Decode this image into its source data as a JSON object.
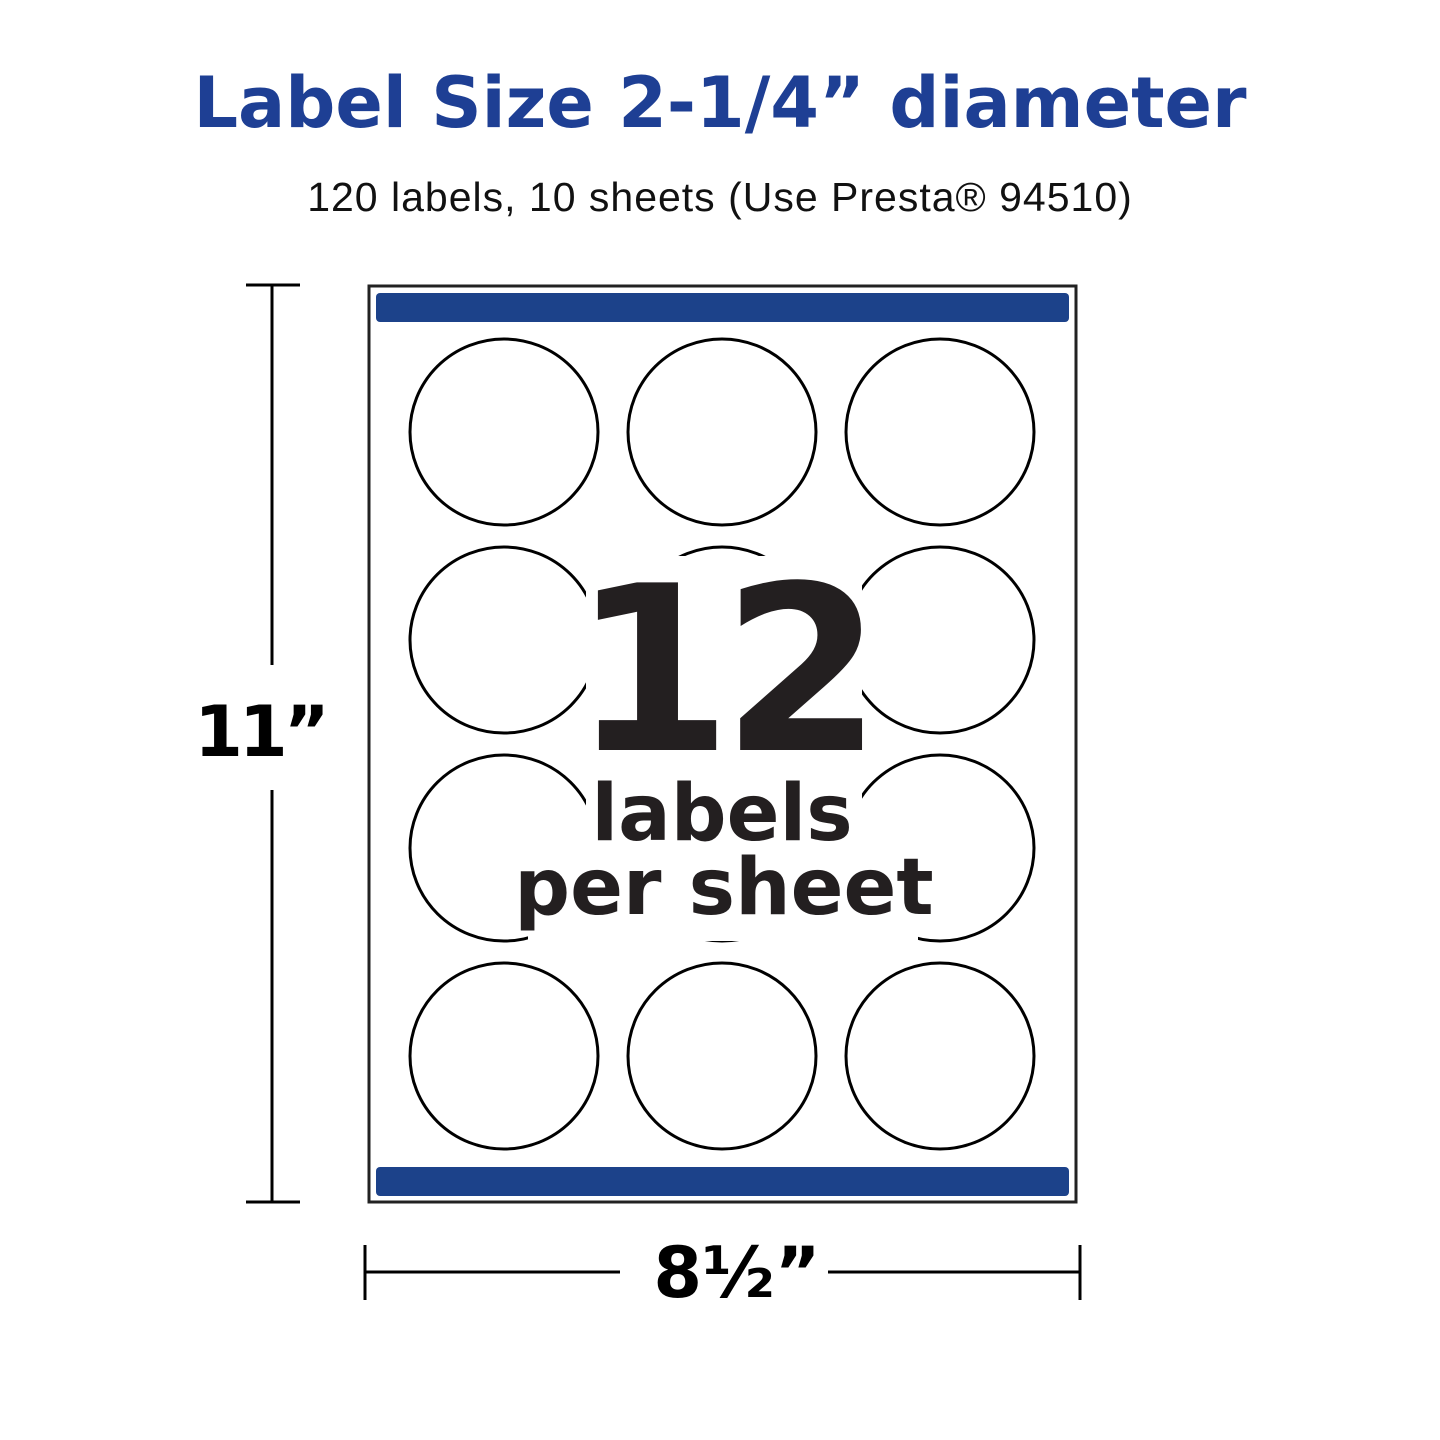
{
  "title": "Label Size 2-1/4” diameter",
  "subtitle": "120 labels, 10 sheets (Use Presta® 94510)",
  "sheet": {
    "count": "12",
    "count_caption_line1": "labels",
    "count_caption_line2": "per sheet",
    "rows": 4,
    "columns": 3,
    "bar_color": "#1c428a"
  },
  "dimensions": {
    "height": "11”",
    "width": "8½”"
  },
  "colors": {
    "title": "#1e3f94",
    "text": "#231f20"
  }
}
